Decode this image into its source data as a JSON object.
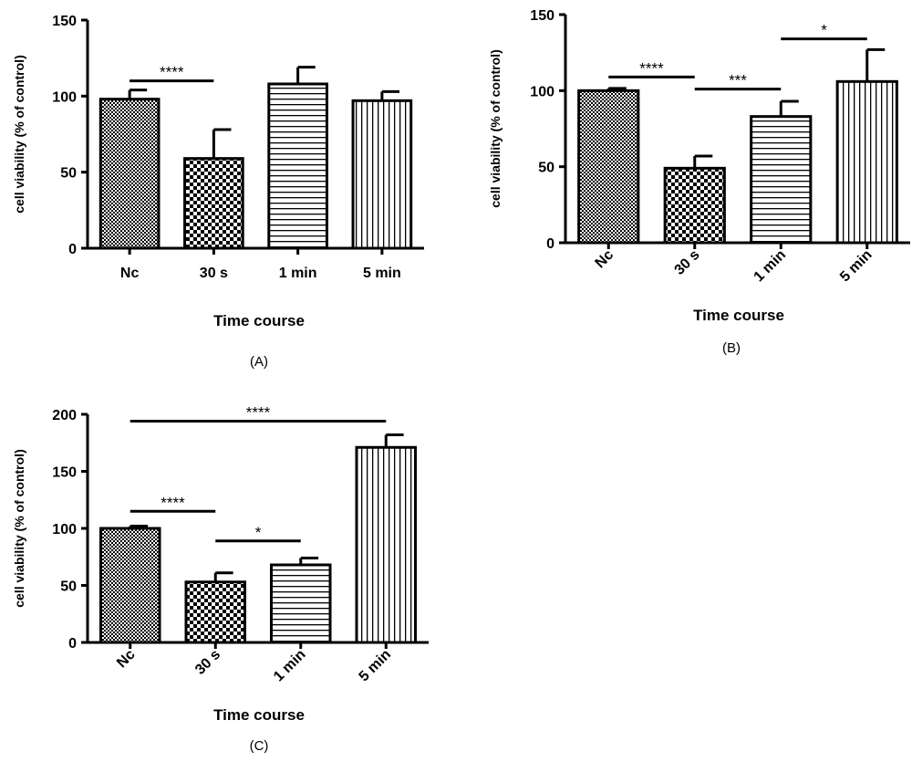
{
  "chart_data": [
    {
      "type": "bar",
      "panel_label": "(A)",
      "categories": [
        "Nc",
        "30 s",
        "1 min",
        "5 min"
      ],
      "values": [
        98,
        59,
        108,
        97
      ],
      "errors": [
        6,
        19,
        11,
        6
      ],
      "patterns": [
        "checker-fine",
        "checker-coarse",
        "horizontal-lines",
        "vertical-lines"
      ],
      "xlabel": "Time course",
      "ylabel": "cell viability (% of control)",
      "ylim": [
        0,
        150
      ],
      "yticks": [
        0,
        50,
        100,
        150
      ],
      "significance": [
        {
          "from": 0,
          "to": 1,
          "y": 110,
          "label": "****"
        }
      ],
      "x_tick_rotation": "horizontal"
    },
    {
      "type": "bar",
      "panel_label": "(B)",
      "categories": [
        "Nc",
        "30 s",
        "1 min",
        "5 min"
      ],
      "values": [
        100,
        49,
        83,
        106
      ],
      "errors": [
        1.5,
        8,
        10,
        21
      ],
      "patterns": [
        "checker-fine",
        "checker-coarse",
        "horizontal-lines",
        "vertical-lines"
      ],
      "xlabel": "Time course",
      "ylabel": "cell viability (% of control)",
      "ylim": [
        0,
        150
      ],
      "yticks": [
        0,
        50,
        100,
        150
      ],
      "significance": [
        {
          "from": 0,
          "to": 1,
          "y": 109,
          "label": "****"
        },
        {
          "from": 1,
          "to": 2,
          "y": 101,
          "label": "***"
        },
        {
          "from": 2,
          "to": 3,
          "y": 134,
          "label": "*"
        }
      ],
      "x_tick_rotation": "rotated"
    },
    {
      "type": "bar",
      "panel_label": "(C)",
      "categories": [
        "Nc",
        "30 s",
        "1 min",
        "5 min"
      ],
      "values": [
        100,
        53,
        68,
        171
      ],
      "errors": [
        2,
        8,
        6,
        11
      ],
      "patterns": [
        "checker-fine",
        "checker-coarse",
        "horizontal-lines",
        "vertical-lines"
      ],
      "xlabel": "Time course",
      "ylabel": "cell viability (% of control)",
      "ylim": [
        0,
        200
      ],
      "yticks": [
        0,
        50,
        100,
        150,
        200
      ],
      "significance": [
        {
          "from": 0,
          "to": 3,
          "y": 194,
          "label": "****"
        },
        {
          "from": 0,
          "to": 1,
          "y": 115,
          "label": "****"
        },
        {
          "from": 1,
          "to": 2,
          "y": 89,
          "label": "*"
        }
      ],
      "x_tick_rotation": "rotated"
    }
  ]
}
